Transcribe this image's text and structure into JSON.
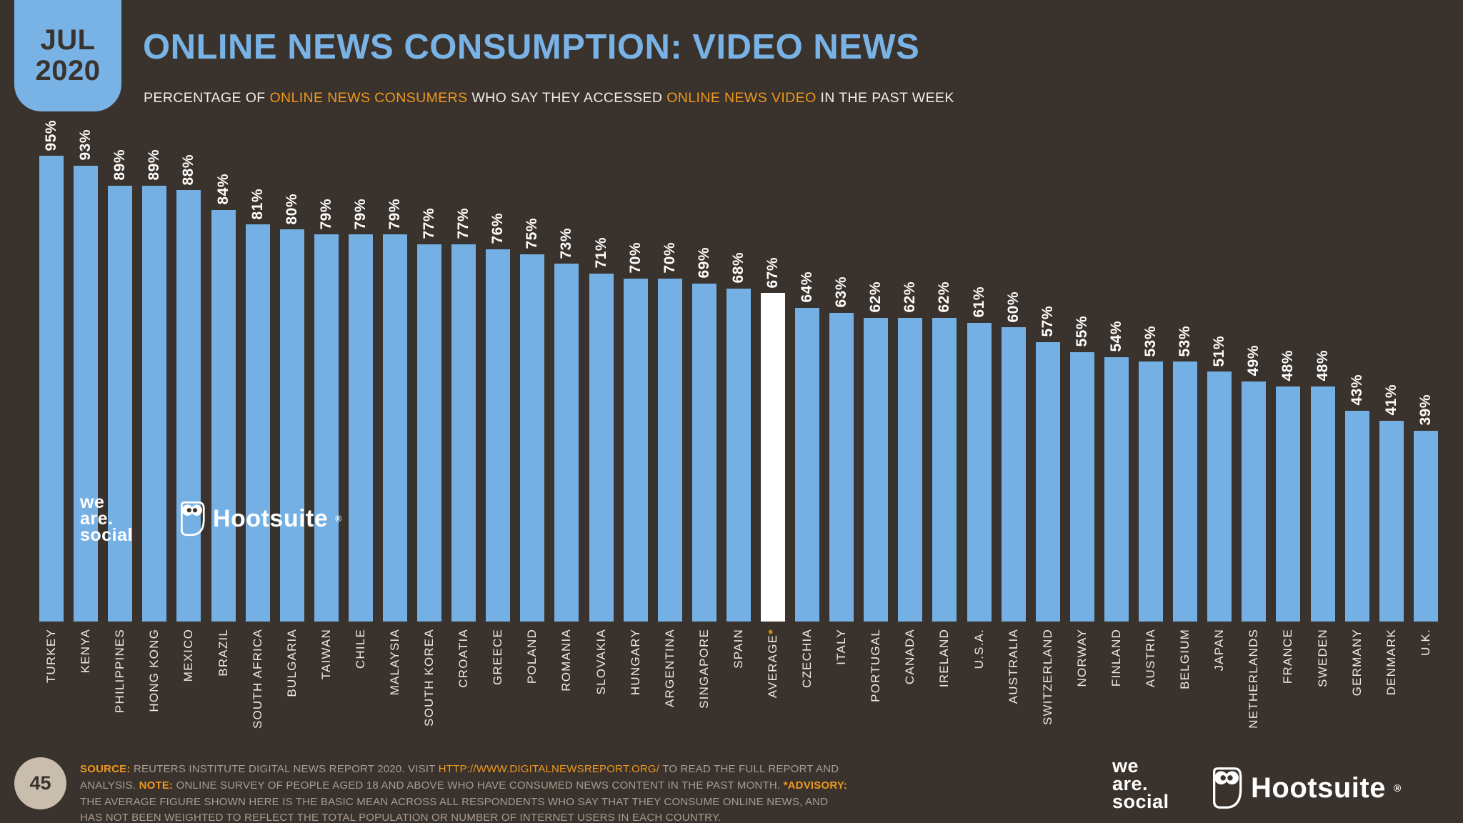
{
  "badge": {
    "month": "JUL",
    "year": "2020"
  },
  "header": {
    "title": "ONLINE NEWS CONSUMPTION: VIDEO NEWS",
    "subtitle": [
      {
        "text": "PERCENTAGE OF "
      },
      {
        "text": "ONLINE NEWS CONSUMERS",
        "orange": true
      },
      {
        "text": " WHO SAY THEY ACCESSED "
      },
      {
        "text": "ONLINE NEWS VIDEO",
        "orange": true
      },
      {
        "text": " IN THE PAST WEEK"
      }
    ]
  },
  "chart_data": {
    "type": "bar",
    "unit": "%",
    "ylim": [
      0,
      100
    ],
    "value_labels_rotated": true,
    "category_labels_rotated": true,
    "highlight_color": "#ffffff",
    "bar_color": "#74b0e4",
    "bars": [
      {
        "country": "TURKEY",
        "value": 95
      },
      {
        "country": "KENYA",
        "value": 93
      },
      {
        "country": "PHILIPPINES",
        "value": 89
      },
      {
        "country": "HONG KONG",
        "value": 89
      },
      {
        "country": "MEXICO",
        "value": 88
      },
      {
        "country": "BRAZIL",
        "value": 84
      },
      {
        "country": "SOUTH AFRICA",
        "value": 81
      },
      {
        "country": "BULGARIA",
        "value": 80
      },
      {
        "country": "TAIWAN",
        "value": 79
      },
      {
        "country": "CHILE",
        "value": 79
      },
      {
        "country": "MALAYSIA",
        "value": 79
      },
      {
        "country": "SOUTH KOREA",
        "value": 77
      },
      {
        "country": "CROATIA",
        "value": 77
      },
      {
        "country": "GREECE",
        "value": 76
      },
      {
        "country": "POLAND",
        "value": 75
      },
      {
        "country": "ROMANIA",
        "value": 73
      },
      {
        "country": "SLOVAKIA",
        "value": 71
      },
      {
        "country": "HUNGARY",
        "value": 70
      },
      {
        "country": "ARGENTINA",
        "value": 70
      },
      {
        "country": "SINGAPORE",
        "value": 69
      },
      {
        "country": "SPAIN",
        "value": 68
      },
      {
        "country": "AVERAGE",
        "suffix": "*",
        "value": 67,
        "highlight": true
      },
      {
        "country": "CZECHIA",
        "value": 64
      },
      {
        "country": "ITALY",
        "value": 63
      },
      {
        "country": "PORTUGAL",
        "value": 62
      },
      {
        "country": "CANADA",
        "value": 62
      },
      {
        "country": "IRELAND",
        "value": 62
      },
      {
        "country": "U.S.A.",
        "value": 61
      },
      {
        "country": "AUSTRALIA",
        "value": 60
      },
      {
        "country": "SWITZERLAND",
        "value": 57
      },
      {
        "country": "NORWAY",
        "value": 55
      },
      {
        "country": "FINLAND",
        "value": 54
      },
      {
        "country": "AUSTRIA",
        "value": 53
      },
      {
        "country": "BELGIUM",
        "value": 53
      },
      {
        "country": "JAPAN",
        "value": 51
      },
      {
        "country": "NETHERLANDS",
        "value": 49
      },
      {
        "country": "FRANCE",
        "value": 48
      },
      {
        "country": "SWEDEN",
        "value": 48
      },
      {
        "country": "GERMANY",
        "value": 43
      },
      {
        "country": "DENMARK",
        "value": 41
      },
      {
        "country": "U.K.",
        "value": 39
      }
    ]
  },
  "logos": {
    "we_are_social_lines": [
      "we",
      "are.",
      "social"
    ],
    "hootsuite_word": "Hootsuite",
    "hootsuite_reg": "®"
  },
  "footer": {
    "page_number": "45",
    "note_segments": [
      {
        "text": "SOURCE:",
        "style": "orange-bold"
      },
      {
        "text": " REUTERS INSTITUTE DIGITAL NEWS REPORT 2020. VISIT "
      },
      {
        "text": "HTTP://WWW.DIGITALNEWSREPORT.ORG/",
        "style": "orange"
      },
      {
        "text": " TO READ THE FULL REPORT AND ANALYSIS. "
      },
      {
        "text": "NOTE:",
        "style": "orange-bold"
      },
      {
        "text": " ONLINE SURVEY OF PEOPLE AGED 18 AND ABOVE WHO HAVE CONSUMED NEWS CONTENT IN THE PAST MONTH. "
      },
      {
        "text": "*ADVISORY:",
        "style": "orange-bold"
      },
      {
        "text": " THE AVERAGE FIGURE SHOWN HERE IS THE BASIC MEAN ACROSS ALL RESPONDENTS WHO SAY THAT THEY CONSUME ONLINE NEWS, AND HAS NOT BEEN WEIGHTED TO REFLECT THE TOTAL POPULATION OR NUMBER OF INTERNET USERS IN EACH COUNTRY."
      }
    ]
  },
  "colors": {
    "background": "#3a322c",
    "accent_blue": "#79b3e6",
    "bar_blue": "#74b0e4",
    "accent_orange": "#ef981e",
    "highlight_white": "#ffffff",
    "footer_text": "#a79d91"
  }
}
